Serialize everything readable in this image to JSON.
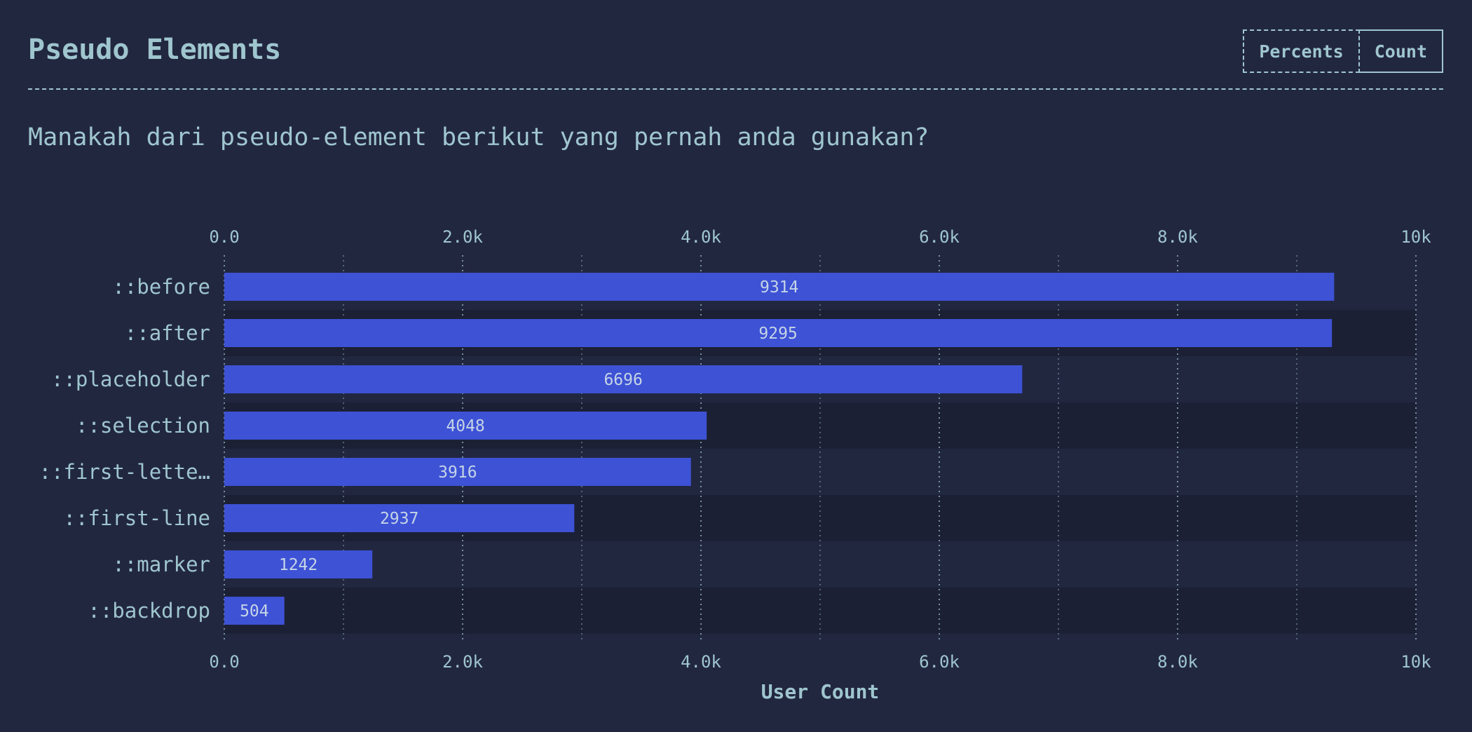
{
  "header": {
    "title": "Pseudo Elements",
    "toggle": {
      "percents_label": "Percents",
      "count_label": "Count",
      "selected": "Count"
    }
  },
  "question": "Manakah dari pseudo-element berikut yang pernah anda gunakan?",
  "colors": {
    "background": "#222740",
    "text": "#9fc6cf",
    "bar": "#3d52d5",
    "band": "#1c2035"
  },
  "chart_data": {
    "type": "bar",
    "orientation": "horizontal",
    "categories": [
      "::before",
      "::after",
      "::placeholder",
      "::selection",
      "::first-lette…",
      "::first-line",
      "::marker",
      "::backdrop"
    ],
    "values": [
      9314,
      9295,
      6696,
      4048,
      3916,
      2937,
      1242,
      504
    ],
    "xlabel": "User Count",
    "xlim": [
      0,
      10000
    ],
    "xticks": [
      "0.0",
      "2.0k",
      "4.0k",
      "6.0k",
      "8.0k",
      "10k"
    ],
    "grid": true
  }
}
